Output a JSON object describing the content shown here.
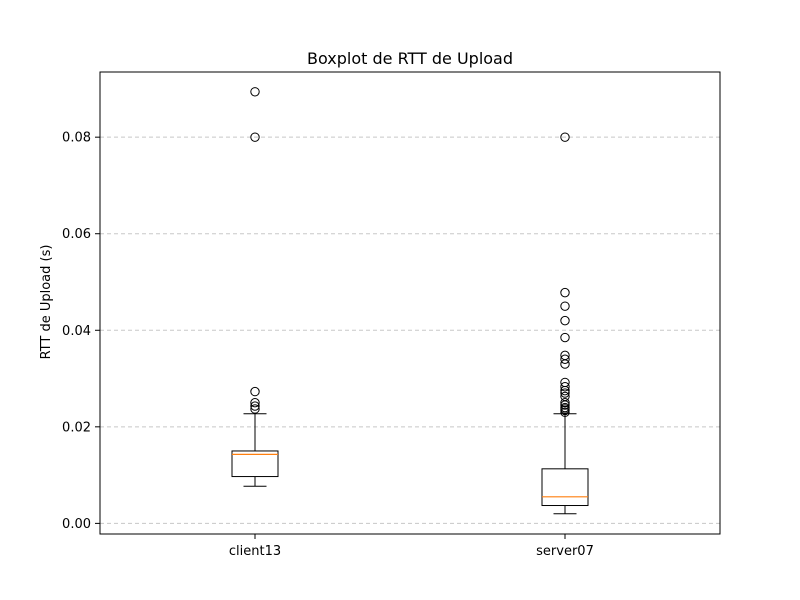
{
  "chart_data": {
    "type": "box",
    "title": "Boxplot de RTT de Upload",
    "xlabel": "",
    "ylabel": "RTT de Upload (s)",
    "ylim": [
      -0.0022,
      0.0935
    ],
    "yticks": [
      0.0,
      0.02,
      0.04,
      0.06,
      0.08
    ],
    "ytick_labels": [
      "0.00",
      "0.02",
      "0.04",
      "0.06",
      "0.08"
    ],
    "grid": "y-dashed",
    "legend": "none",
    "colors": {
      "box": "#000000",
      "median": "#ff7f0e",
      "grid": "#c8c8c8"
    },
    "categories": [
      "client13",
      "server07"
    ],
    "boxes": [
      {
        "name": "client13",
        "whisker_low": 0.0077,
        "q1": 0.0097,
        "median": 0.0143,
        "q3": 0.015,
        "whisker_high": 0.0227,
        "outliers": [
          0.0237,
          0.0243,
          0.025,
          0.0273,
          0.08,
          0.0894
        ]
      },
      {
        "name": "server07",
        "whisker_low": 0.002,
        "q1": 0.0037,
        "median": 0.0055,
        "q3": 0.0113,
        "whisker_high": 0.0227,
        "outliers": [
          0.023,
          0.0234,
          0.0237,
          0.024,
          0.0245,
          0.025,
          0.0263,
          0.027,
          0.0275,
          0.0283,
          0.0292,
          0.033,
          0.034,
          0.0348,
          0.0385,
          0.042,
          0.045,
          0.0478,
          0.08
        ]
      }
    ]
  }
}
